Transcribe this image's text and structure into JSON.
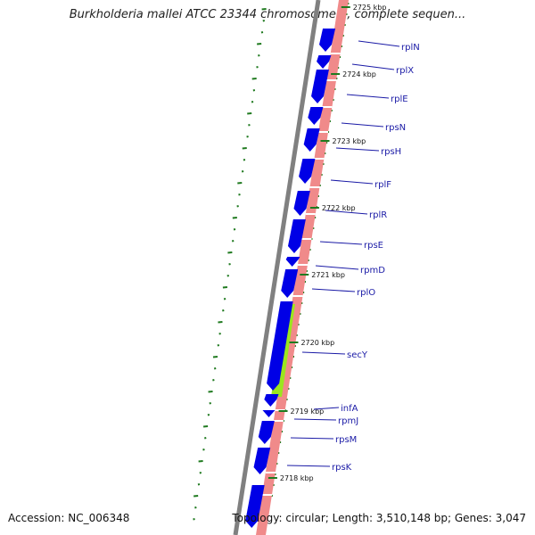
{
  "title": "Burkholderia mallei ATCC 23344 chromosome 1, complete sequen...",
  "accession": "Accession: NC_006348",
  "topology": "Topology: circular; Length: 3,510,148 bp; Genes: 3,047",
  "colors": {
    "backbone": "#808080",
    "gene_blue": "#0000e6",
    "rna_pink": "#f08a8a",
    "secY_green": "#9be61e",
    "tick_green": "#1f7a1f",
    "label_blue": "#1a1aa6"
  },
  "scale_labels": [
    {
      "kbp": 2725,
      "text": "2725 kbp"
    },
    {
      "kbp": 2724,
      "text": "2724 kbp"
    },
    {
      "kbp": 2723,
      "text": "2723 kbp"
    },
    {
      "kbp": 2722,
      "text": "2722 kbp"
    },
    {
      "kbp": 2721,
      "text": "2721 kbp"
    },
    {
      "kbp": 2720,
      "text": "2720 kbp"
    },
    {
      "kbp": 2719,
      "text": "2719 kbp"
    },
    {
      "kbp": 2718,
      "text": "2718 kbp"
    }
  ],
  "genes": [
    {
      "name": "rplN"
    },
    {
      "name": "rplX"
    },
    {
      "name": "rplE"
    },
    {
      "name": "rpsN"
    },
    {
      "name": "rpsH"
    },
    {
      "name": "rplF"
    },
    {
      "name": "rplR"
    },
    {
      "name": "rpsE"
    },
    {
      "name": "rpmD"
    },
    {
      "name": "rplO"
    },
    {
      "name": "secY"
    },
    {
      "name": "infA"
    },
    {
      "name": "rpmJ"
    },
    {
      "name": "rpsM"
    },
    {
      "name": "rpsK"
    }
  ]
}
